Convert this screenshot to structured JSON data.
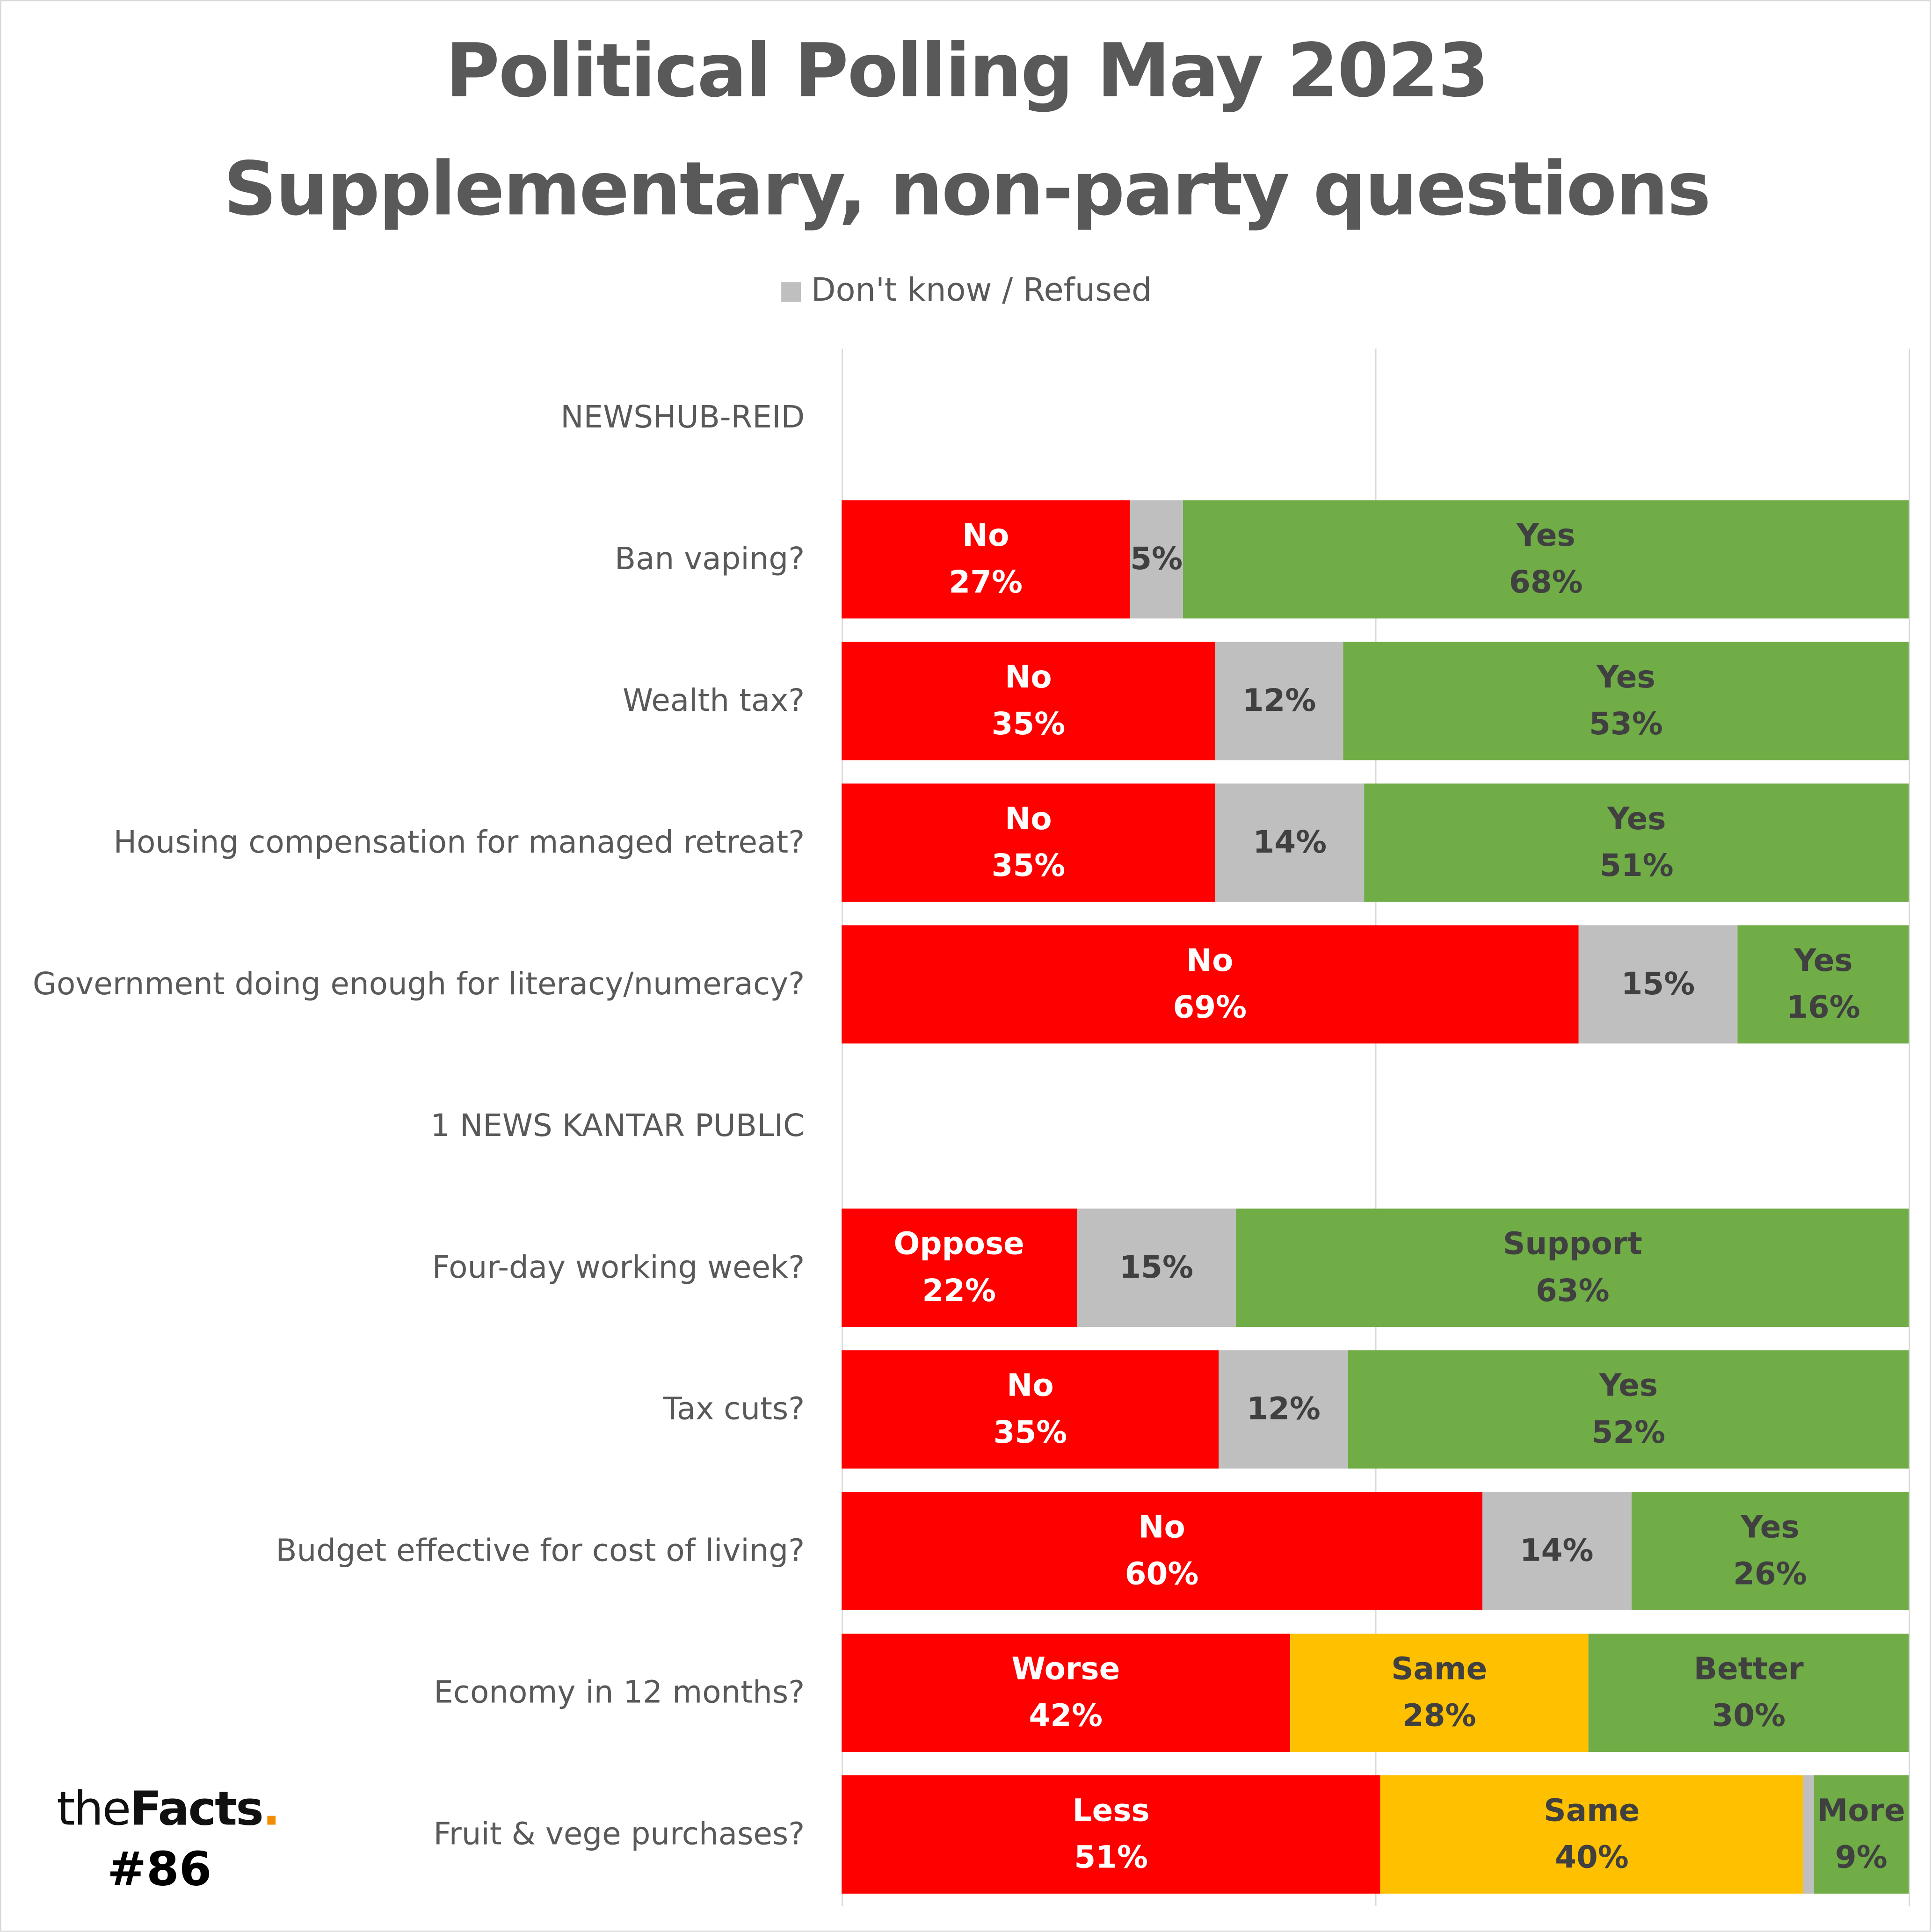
{
  "chart_data": {
    "type": "bar",
    "orientation": "horizontal-stacked-100",
    "title": [
      "Political Polling May 2023",
      "Supplementary, non-party questions"
    ],
    "legend": [
      "Don't know / Refused"
    ],
    "legend_placement": "top",
    "xlim": [
      0,
      100
    ],
    "grid": true,
    "colors": {
      "negative": "#ff0000",
      "dontknow": "#bfbfbf",
      "positive": "#70ad47",
      "neutral": "#ffc000"
    },
    "rows": [
      {
        "label": "NEWSHUB-REID",
        "header": true,
        "segments": []
      },
      {
        "label": "Ban vaping?",
        "segments": [
          {
            "name": "No",
            "value": 27,
            "color": "negative"
          },
          {
            "name": "",
            "value": 5,
            "color": "dontknow"
          },
          {
            "name": "Yes",
            "value": 68,
            "color": "positive"
          }
        ]
      },
      {
        "label": "Wealth tax?",
        "segments": [
          {
            "name": "No",
            "value": 35,
            "color": "negative"
          },
          {
            "name": "",
            "value": 12,
            "color": "dontknow"
          },
          {
            "name": "Yes",
            "value": 53,
            "color": "positive"
          }
        ]
      },
      {
        "label": "Housing compensation for managed retreat?",
        "segments": [
          {
            "name": "No",
            "value": 35,
            "color": "negative"
          },
          {
            "name": "",
            "value": 14,
            "color": "dontknow"
          },
          {
            "name": "Yes",
            "value": 51,
            "color": "positive"
          }
        ]
      },
      {
        "label": "Government doing enough for literacy/numeracy?",
        "segments": [
          {
            "name": "No",
            "value": 69,
            "color": "negative"
          },
          {
            "name": "",
            "value": 15,
            "color": "dontknow"
          },
          {
            "name": "Yes",
            "value": 16,
            "color": "positive"
          }
        ]
      },
      {
        "label": "1 NEWS KANTAR PUBLIC",
        "header": true,
        "segments": []
      },
      {
        "label": "Four-day working week?",
        "segments": [
          {
            "name": "Oppose",
            "value": 22,
            "color": "negative"
          },
          {
            "name": "",
            "value": 15,
            "color": "dontknow"
          },
          {
            "name": "Support",
            "value": 63,
            "color": "positive"
          }
        ]
      },
      {
        "label": "Tax cuts?",
        "segments": [
          {
            "name": "No",
            "value": 35,
            "color": "negative"
          },
          {
            "name": "",
            "value": 12,
            "color": "dontknow"
          },
          {
            "name": "Yes",
            "value": 52,
            "color": "positive"
          }
        ]
      },
      {
        "label": "Budget effective for cost of living?",
        "segments": [
          {
            "name": "No",
            "value": 60,
            "color": "negative"
          },
          {
            "name": "",
            "value": 14,
            "color": "dontknow"
          },
          {
            "name": "Yes",
            "value": 26,
            "color": "positive"
          }
        ]
      },
      {
        "label": "Economy in 12 months?",
        "segments": [
          {
            "name": "Worse",
            "value": 42,
            "color": "negative"
          },
          {
            "name": "Same",
            "value": 28,
            "color": "neutral"
          },
          {
            "name": "Better",
            "value": 30,
            "color": "positive"
          }
        ]
      },
      {
        "label": "Fruit & vege purchases?",
        "segments": [
          {
            "name": "Less",
            "value": 51,
            "color": "negative"
          },
          {
            "name": "Same",
            "value": 40,
            "color": "neutral"
          },
          {
            "name": "",
            "value": 1,
            "color": "dontknow",
            "hide_label": true
          },
          {
            "name": "More",
            "value": 9,
            "color": "positive"
          }
        ]
      }
    ]
  },
  "branding": {
    "logo_the": "the",
    "logo_facts": "Facts",
    "logo_dot": ".",
    "issue": "#86"
  }
}
